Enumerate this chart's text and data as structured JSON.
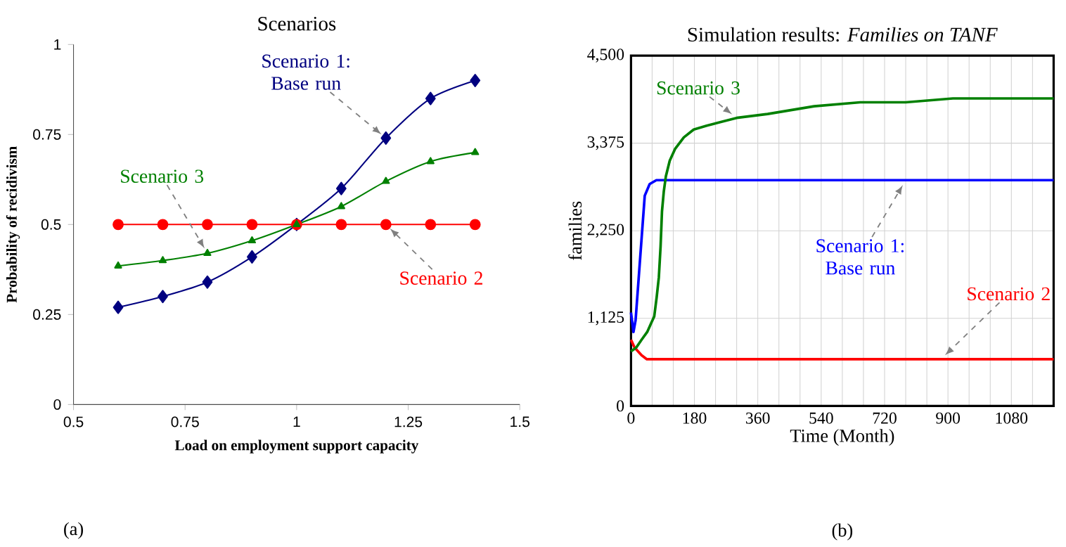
{
  "chart_data": [
    {
      "type": "line",
      "title": "Scenarios",
      "xlabel": "Load on employment support capacity",
      "ylabel": "Probability of recidivism",
      "x": [
        0.6,
        0.7,
        0.8,
        0.9,
        1.0,
        1.1,
        1.2,
        1.3,
        1.4
      ],
      "series": [
        {
          "name": "Scenario 1: Base run",
          "color": "#000080",
          "marker": "diamond",
          "values": [
            0.27,
            0.3,
            0.34,
            0.41,
            0.5,
            0.6,
            0.74,
            0.85,
            0.9
          ]
        },
        {
          "name": "Scenario 2",
          "color": "#ff0000",
          "marker": "circle",
          "values": [
            0.5,
            0.5,
            0.5,
            0.5,
            0.5,
            0.5,
            0.5,
            0.5,
            0.5
          ]
        },
        {
          "name": "Scenario 3",
          "color": "#008000",
          "marker": "triangle",
          "values": [
            0.385,
            0.4,
            0.42,
            0.455,
            0.5,
            0.55,
            0.62,
            0.675,
            0.7
          ]
        }
      ],
      "xlim": [
        0.5,
        1.5
      ],
      "ylim": [
        0,
        1
      ],
      "xticks": [
        0.5,
        0.75,
        1,
        1.25,
        1.5
      ],
      "yticks": [
        0,
        0.25,
        0.5,
        0.75,
        1
      ],
      "annotations": [
        "(a)"
      ]
    },
    {
      "type": "line",
      "title": "Simulation results: *Families on TANF*",
      "xlabel": "Time (Month)",
      "ylabel": "families",
      "series": [
        {
          "name": "Scenario 1: Base run",
          "color": "#0000ff",
          "x": [
            0,
            7,
            13,
            26,
            39,
            53,
            72,
            125,
            300,
            600,
            780,
            900,
            1200
          ],
          "values": [
            1200,
            950,
            1100,
            1900,
            2700,
            2850,
            2900,
            2900,
            2900,
            2900,
            2900,
            2900,
            2900
          ]
        },
        {
          "name": "Scenario 2",
          "color": "#ff0000",
          "x": [
            0,
            10,
            20,
            30,
            45,
            60,
            120,
            300,
            600,
            880,
            1200
          ],
          "values": [
            850,
            750,
            700,
            650,
            600,
            600,
            600,
            600,
            600,
            600,
            600
          ]
        },
        {
          "name": "Scenario 3",
          "color": "#008000",
          "x": [
            0,
            15,
            30,
            46,
            56,
            66,
            73,
            79,
            84,
            88,
            93,
            99,
            110,
            125,
            150,
            178,
            215,
            257,
            300,
            388,
            520,
            651,
            780,
            914,
            1050,
            1200
          ],
          "values": [
            700,
            750,
            850,
            950,
            1050,
            1150,
            1400,
            1650,
            2050,
            2500,
            2750,
            2950,
            3150,
            3300,
            3450,
            3550,
            3600,
            3650,
            3700,
            3750,
            3850,
            3900,
            3900,
            3950,
            3950,
            3950
          ]
        }
      ],
      "xlim": [
        0,
        1200
      ],
      "ylim": [
        0,
        4500
      ],
      "xticks": [
        0,
        {
          "value": 60,
          "label": null
        },
        {
          "value": 120,
          "label": null
        },
        180,
        {
          "value": 240,
          "label": null
        },
        {
          "value": 300,
          "label": null
        },
        360,
        {
          "value": 420,
          "label": null
        },
        {
          "value": 480,
          "label": null
        },
        540,
        {
          "value": 600,
          "label": null
        },
        {
          "value": 660,
          "label": null
        },
        720,
        {
          "value": 780,
          "label": null
        },
        {
          "value": 840,
          "label": null
        },
        900,
        {
          "value": 960,
          "label": null
        },
        {
          "value": 1020,
          "label": null
        },
        1080,
        {
          "value": 1140,
          "label": null
        }
      ],
      "yticks": [
        0,
        {
          "value": 1125,
          "label": "1,125"
        },
        {
          "value": 2250,
          "label": "2,250"
        },
        {
          "value": 3375,
          "label": "3,375"
        },
        {
          "value": 4500,
          "label": "4,500"
        }
      ],
      "grid": true,
      "annotations": [
        "(b)"
      ]
    }
  ]
}
